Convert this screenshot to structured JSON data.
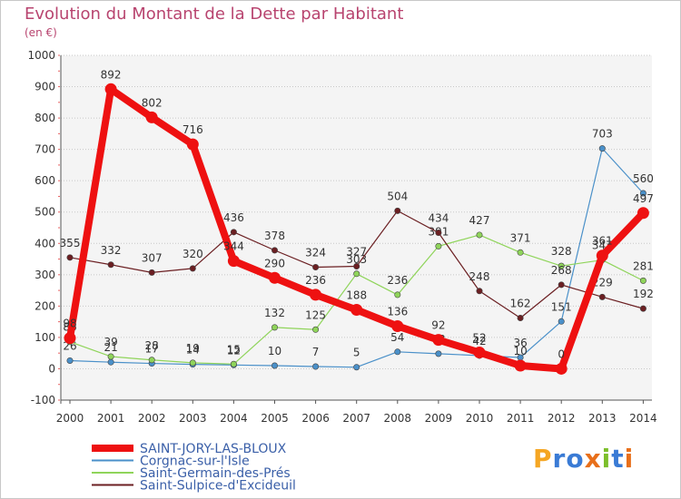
{
  "title": "Evolution du Montant de la Dette par Habitant",
  "unit": "(en €)",
  "brand": {
    "letters": [
      "P",
      "r",
      "o",
      "x",
      "i",
      "t",
      "i"
    ],
    "colors": [
      "#f5a623",
      "#3a7bd5",
      "#3a7bd5",
      "#e86f1a",
      "#7cbf2b",
      "#3a7bd5",
      "#e86f1a"
    ]
  },
  "chart_data": {
    "type": "line",
    "title": "Evolution du Montant de la Dette par Habitant",
    "ylabel": "(en €)",
    "xlabel": "",
    "x": [
      "2000",
      "2001",
      "2002",
      "2003",
      "2004",
      "2005",
      "2006",
      "2007",
      "2008",
      "2009",
      "2010",
      "2011",
      "2012",
      "2013",
      "2014"
    ],
    "ylim": [
      -100,
      1000
    ],
    "yticks": [
      "-100",
      "0",
      "100",
      "200",
      "300",
      "400",
      "500",
      "600",
      "700",
      "800",
      "900",
      "1000"
    ],
    "grid": "horizontal dotted",
    "legend_position": "bottom-left",
    "series": [
      {
        "name": "Corgnac-sur-l'Isle",
        "color": "#4a90c9",
        "thick": false,
        "values": [
          26,
          21,
          17,
          14,
          12,
          10,
          7,
          5,
          54,
          48,
          42,
          36,
          151,
          703,
          560
        ],
        "labels": [
          "26",
          "21",
          "17",
          "14",
          "12",
          "10",
          "7",
          "5",
          "54",
          "48",
          "42",
          "36",
          "151",
          "703",
          "560"
        ]
      },
      {
        "name": "Saint-Germain-des-Prés",
        "color": "#8fd45a",
        "thick": false,
        "values": [
          86,
          39,
          28,
          19,
          15,
          132,
          125,
          303,
          236,
          391,
          427,
          371,
          328,
          347,
          281
        ],
        "labels": [
          "86",
          "39",
          "28",
          "19",
          "15",
          "132",
          "125",
          "303",
          "236",
          "391",
          "427",
          "371",
          "328",
          "347",
          "281"
        ]
      },
      {
        "name": "Saint-Sulpice-d'Excideuil",
        "color": "#6b1f22",
        "thick": false,
        "values": [
          355,
          332,
          307,
          320,
          436,
          378,
          324,
          327,
          504,
          434,
          248,
          162,
          268,
          229,
          192
        ],
        "labels": [
          "355",
          "332",
          "307",
          "320",
          "436",
          "378",
          "324",
          "327",
          "504",
          "434",
          "248",
          "162",
          "268",
          "229",
          "192"
        ]
      },
      {
        "name": "SAINT-JORY-LAS-BLOUX",
        "color": "#ee1111",
        "thick": true,
        "values": [
          98,
          892,
          802,
          716,
          344,
          290,
          236,
          188,
          136,
          92,
          52,
          10,
          0,
          361,
          497
        ],
        "labels": [
          "98",
          "892",
          "802",
          "716",
          "344",
          "290",
          "236",
          "188",
          "136",
          "92",
          "52",
          "10",
          "0",
          "361",
          "497"
        ]
      }
    ],
    "legend": [
      {
        "name": "SAINT-JORY-LAS-BLOUX",
        "color": "#ee1111",
        "thick": true
      },
      {
        "name": "Corgnac-sur-l'Isle",
        "color": "#4a90c9",
        "thick": false
      },
      {
        "name": "Saint-Germain-des-Prés",
        "color": "#8fd45a",
        "thick": false
      },
      {
        "name": "Saint-Sulpice-d'Excideuil",
        "color": "#6b1f22",
        "thick": false
      }
    ]
  }
}
